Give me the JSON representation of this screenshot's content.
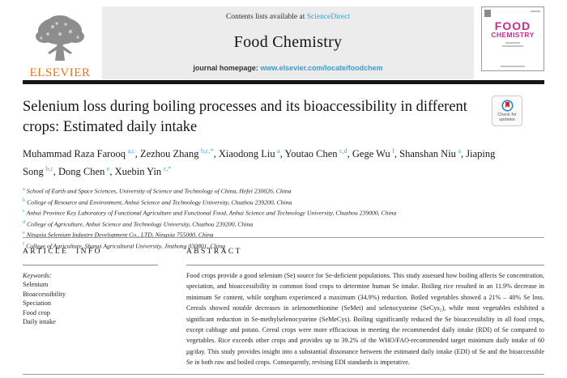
{
  "header": {
    "elsevier_wordmark": "ELSEVIER",
    "contents_prefix": "Contents lists available at ",
    "sciencedirect_link": "ScienceDirect",
    "journal_title": "Food Chemistry",
    "homepage_prefix": "journal homepage: ",
    "homepage_url": "www.elsevier.com/locate/foodchem",
    "cover": {
      "title_line1": "FOOD",
      "title_line2": "CHEMISTRY"
    }
  },
  "article": {
    "title": "Selenium loss during boiling processes and its bioaccessibility in different crops: Estimated daily intake",
    "check_updates_label": "Check for updates",
    "authors": [
      {
        "name": "Muhammad Raza Farooq",
        "sup": "a,c"
      },
      {
        "name": "Zezhou Zhang",
        "sup": "b,c,*"
      },
      {
        "name": "Xiaodong Liu",
        "sup": "a"
      },
      {
        "name": "Youtao Chen",
        "sup": "c,d"
      },
      {
        "name": "Gege Wu",
        "sup": "f"
      },
      {
        "name": "Shanshan Niu",
        "sup": "a"
      },
      {
        "name": "Jiaping Song",
        "sup": "b,c"
      },
      {
        "name": "Dong Chen",
        "sup": "e"
      },
      {
        "name": "Xuebin Yin",
        "sup": "c,*"
      }
    ],
    "affiliations": [
      {
        "sup": "a",
        "text": "School of Earth and Space Sciences, University of Science and Technology of China, Hefei 230026, China"
      },
      {
        "sup": "b",
        "text": "College of Resource and Environment, Anhui Science and Technology University, Chuzhou 239200, China"
      },
      {
        "sup": "c",
        "text": "Anhui Province Key Laboratory of Functional Agriculture and Functional Food, Anhui Science and Technology University, Chuzhou 239000, China"
      },
      {
        "sup": "d",
        "text": "College of Agriculture, Anhui Science and Technology University, Chuzhou 239200, China"
      },
      {
        "sup": "e",
        "text": "Ningxia Selenium Industry Development Co., LTD, Ningxia 755000, China"
      },
      {
        "sup": "f",
        "text": "College of Agriculture, Shanxi Agricultural University, Jinzhong 030801, China"
      }
    ]
  },
  "article_info": {
    "heading": "ARTICLE INFO",
    "keywords_label": "Keywords:",
    "keywords": [
      "Selenium",
      "Bioaccessibility",
      "Speciation",
      "Food crop",
      "Daily intake"
    ]
  },
  "abstract": {
    "heading": "ABSTRACT",
    "text": "Food crops provide a good selenium (Se) source for Se-deficient populations. This study assessed how boiling affects Se concentration, speciation, and bioaccessibility in common food crops to determine human Se intake. Boiling rice resulted in an 11.9% decrease in minimum Se content, while sorghum experienced a maximum (34.9%) reduction. Boiled vegetables showed a 21% – 40% Se loss. Cereals showed notable decreases in selenomethionine (SeMet) and selenocysteine (SeCys₂), while most vegetables exhibited a significant reduction in Se-methylselenocysteine (SeMeCys). Boiling significantly reduced the Se bioaccessibility in all food crops, except cabbage and potato. Cereal crops were more efficacious in meeting the recommended daily intake (RDI) of Se compared to vegetables. Rice exceeds other crops and provides up to 39.2% of the WHO/FAO-recommended target minimum daily intake of 60 μg/day. This study provides insight into a substantial dissonance between the estimated daily intake (EDI) of Se and the bioaccessible Se in both raw and boiled crops. Consequently, revising EDI standards is imperative."
  },
  "icons": {
    "elsevier_logo": "tree-icon",
    "check_updates": "bookmark-circle-icon"
  },
  "colors": {
    "link_blue": "#3a9bd5",
    "superscript_blue": "#4a9fd8",
    "elsevier_orange": "#e6731e",
    "cover_magenta": "#c22e8f",
    "divider_black": "#161616",
    "banner_gray": "#ececec"
  }
}
